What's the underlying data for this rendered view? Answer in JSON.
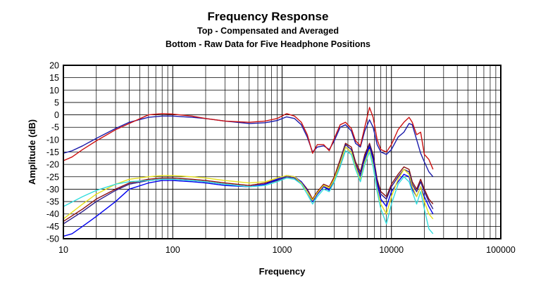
{
  "chart_data": {
    "type": "line",
    "title": "Frequency Response",
    "subtitle_lines": [
      "Top -  Compensated and Averaged",
      "Bottom - Raw Data for Five Headphone Positions"
    ],
    "xlabel": "Frequency",
    "ylabel": "Amplitude (dB)",
    "x_scale": "log",
    "xlim": [
      10,
      100000
    ],
    "ylim": [
      -50,
      20
    ],
    "x_ticks": [
      10,
      100,
      1000,
      10000,
      100000
    ],
    "x_tick_labels": [
      "10",
      "100",
      "1000",
      "10000",
      "100000"
    ],
    "y_ticks": [
      20,
      15,
      10,
      5,
      0,
      -5,
      -10,
      -15,
      -20,
      -25,
      -30,
      -35,
      -40,
      -45,
      -50
    ],
    "grid": true,
    "legend": "none",
    "series": [
      {
        "group": "compensated",
        "color": "#1a1aaa",
        "points": [
          [
            10,
            -15.5
          ],
          [
            12,
            -14.5
          ],
          [
            15,
            -12.5
          ],
          [
            20,
            -9.5
          ],
          [
            30,
            -5.5
          ],
          [
            40,
            -3
          ],
          [
            60,
            -1
          ],
          [
            80,
            -0.5
          ],
          [
            100,
            -0.5
          ],
          [
            150,
            -1
          ],
          [
            200,
            -1.5
          ],
          [
            300,
            -2.5
          ],
          [
            500,
            -3.5
          ],
          [
            700,
            -3.2
          ],
          [
            900,
            -2.3
          ],
          [
            1100,
            -0.8
          ],
          [
            1300,
            -1.5
          ],
          [
            1500,
            -4
          ],
          [
            1700,
            -9
          ],
          [
            1900,
            -15
          ],
          [
            2100,
            -13
          ],
          [
            2400,
            -12.5
          ],
          [
            2700,
            -14
          ],
          [
            3000,
            -10.5
          ],
          [
            3400,
            -5
          ],
          [
            3800,
            -4
          ],
          [
            4300,
            -6.5
          ],
          [
            4700,
            -11.5
          ],
          [
            5200,
            -13
          ],
          [
            5700,
            -6.5
          ],
          [
            6300,
            -2
          ],
          [
            6800,
            -5
          ],
          [
            7400,
            -12
          ],
          [
            8000,
            -15
          ],
          [
            9000,
            -16
          ],
          [
            10000,
            -14
          ],
          [
            11500,
            -9
          ],
          [
            13000,
            -7
          ],
          [
            14500,
            -3.5
          ],
          [
            15500,
            -4
          ],
          [
            17000,
            -10
          ],
          [
            18500,
            -15.5
          ],
          [
            20000,
            -19
          ],
          [
            22000,
            -23
          ],
          [
            24000,
            -25
          ]
        ]
      },
      {
        "group": "compensated",
        "color": "#cc1111",
        "points": [
          [
            10,
            -18.5
          ],
          [
            12,
            -17
          ],
          [
            15,
            -14
          ],
          [
            20,
            -10.5
          ],
          [
            30,
            -6
          ],
          [
            40,
            -3.5
          ],
          [
            60,
            0
          ],
          [
            80,
            0.5
          ],
          [
            100,
            0.3
          ],
          [
            150,
            -0.5
          ],
          [
            200,
            -1.5
          ],
          [
            300,
            -2.5
          ],
          [
            500,
            -3
          ],
          [
            700,
            -2.5
          ],
          [
            900,
            -1.5
          ],
          [
            1100,
            0.5
          ],
          [
            1300,
            -0.5
          ],
          [
            1500,
            -3
          ],
          [
            1700,
            -8
          ],
          [
            1900,
            -15.5
          ],
          [
            2100,
            -12
          ],
          [
            2400,
            -12
          ],
          [
            2700,
            -14.5
          ],
          [
            3000,
            -9.5
          ],
          [
            3400,
            -4
          ],
          [
            3800,
            -3
          ],
          [
            4300,
            -5.5
          ],
          [
            4700,
            -10.5
          ],
          [
            5200,
            -12.5
          ],
          [
            5700,
            -5
          ],
          [
            6300,
            3
          ],
          [
            6800,
            -1
          ],
          [
            7400,
            -10
          ],
          [
            8000,
            -14
          ],
          [
            9000,
            -15
          ],
          [
            10000,
            -12
          ],
          [
            11500,
            -6
          ],
          [
            13000,
            -3
          ],
          [
            14500,
            -1
          ],
          [
            15500,
            -3
          ],
          [
            17000,
            -8
          ],
          [
            18500,
            -7
          ],
          [
            20000,
            -16
          ],
          [
            22000,
            -18
          ],
          [
            24000,
            -22
          ]
        ]
      },
      {
        "group": "raw",
        "color": "#8b1010",
        "points": [
          [
            10,
            -43
          ],
          [
            15,
            -38
          ],
          [
            20,
            -34
          ],
          [
            30,
            -30
          ],
          [
            40,
            -27.5
          ],
          [
            60,
            -26
          ],
          [
            80,
            -25.5
          ],
          [
            100,
            -25.5
          ],
          [
            150,
            -26
          ],
          [
            200,
            -26.5
          ],
          [
            300,
            -27.5
          ],
          [
            500,
            -28.5
          ],
          [
            700,
            -27.5
          ],
          [
            900,
            -26
          ],
          [
            1100,
            -24.5
          ],
          [
            1300,
            -25
          ],
          [
            1500,
            -27
          ],
          [
            1700,
            -30
          ],
          [
            1900,
            -34
          ],
          [
            2100,
            -31
          ],
          [
            2400,
            -28
          ],
          [
            2700,
            -29
          ],
          [
            3000,
            -25
          ],
          [
            3400,
            -18
          ],
          [
            3800,
            -11.5
          ],
          [
            4300,
            -13
          ],
          [
            4700,
            -19
          ],
          [
            5200,
            -23
          ],
          [
            5700,
            -16
          ],
          [
            6300,
            -11.5
          ],
          [
            6800,
            -16
          ],
          [
            7400,
            -26
          ],
          [
            8000,
            -31
          ],
          [
            9000,
            -33
          ],
          [
            10000,
            -28
          ],
          [
            11500,
            -24
          ],
          [
            13000,
            -21
          ],
          [
            14500,
            -22
          ],
          [
            15500,
            -27
          ],
          [
            17000,
            -30
          ],
          [
            18500,
            -26
          ],
          [
            20000,
            -30
          ],
          [
            22000,
            -34
          ],
          [
            24000,
            -36
          ]
        ]
      },
      {
        "group": "raw",
        "color": "#2a1a8a",
        "points": [
          [
            10,
            -44
          ],
          [
            15,
            -39
          ],
          [
            20,
            -35
          ],
          [
            30,
            -30.5
          ],
          [
            40,
            -28
          ],
          [
            60,
            -26.5
          ],
          [
            80,
            -26
          ],
          [
            100,
            -26
          ],
          [
            150,
            -26.5
          ],
          [
            200,
            -27
          ],
          [
            300,
            -28
          ],
          [
            500,
            -29
          ],
          [
            700,
            -28
          ],
          [
            900,
            -26.5
          ],
          [
            1100,
            -25
          ],
          [
            1300,
            -25.5
          ],
          [
            1500,
            -27.5
          ],
          [
            1700,
            -31
          ],
          [
            1900,
            -35
          ],
          [
            2100,
            -32
          ],
          [
            2400,
            -29
          ],
          [
            2700,
            -30
          ],
          [
            3000,
            -26
          ],
          [
            3400,
            -19
          ],
          [
            3800,
            -12
          ],
          [
            4300,
            -14
          ],
          [
            4700,
            -20
          ],
          [
            5200,
            -24
          ],
          [
            5700,
            -17
          ],
          [
            6300,
            -12
          ],
          [
            6800,
            -17
          ],
          [
            7400,
            -27
          ],
          [
            8000,
            -32
          ],
          [
            9000,
            -34
          ],
          [
            10000,
            -29
          ],
          [
            11500,
            -25
          ],
          [
            13000,
            -22
          ],
          [
            14500,
            -23
          ],
          [
            15500,
            -28
          ],
          [
            17000,
            -31
          ],
          [
            18500,
            -27
          ],
          [
            20000,
            -31
          ],
          [
            22000,
            -35
          ],
          [
            24000,
            -38
          ]
        ]
      },
      {
        "group": "raw",
        "color": "#0000ee",
        "points": [
          [
            10,
            -49
          ],
          [
            12,
            -48
          ],
          [
            15,
            -45
          ],
          [
            20,
            -41
          ],
          [
            30,
            -35
          ],
          [
            40,
            -30
          ],
          [
            60,
            -27.5
          ],
          [
            80,
            -26.5
          ],
          [
            100,
            -26.5
          ],
          [
            150,
            -27
          ],
          [
            200,
            -27.5
          ],
          [
            300,
            -28.5
          ],
          [
            500,
            -29
          ],
          [
            700,
            -28
          ],
          [
            900,
            -26
          ],
          [
            1100,
            -24.5
          ],
          [
            1300,
            -25
          ],
          [
            1500,
            -27
          ],
          [
            1700,
            -30.5
          ],
          [
            1900,
            -35
          ],
          [
            2100,
            -32
          ],
          [
            2400,
            -29
          ],
          [
            2700,
            -30.5
          ],
          [
            3000,
            -27
          ],
          [
            3400,
            -20
          ],
          [
            3800,
            -13
          ],
          [
            4300,
            -15
          ],
          [
            4700,
            -21
          ],
          [
            5200,
            -25
          ],
          [
            5700,
            -18
          ],
          [
            6300,
            -13
          ],
          [
            6800,
            -18
          ],
          [
            7400,
            -28
          ],
          [
            8000,
            -34
          ],
          [
            9000,
            -37
          ],
          [
            10000,
            -31
          ],
          [
            11500,
            -27
          ],
          [
            13000,
            -24
          ],
          [
            14500,
            -25
          ],
          [
            15500,
            -30
          ],
          [
            17000,
            -33
          ],
          [
            18500,
            -29
          ],
          [
            20000,
            -33
          ],
          [
            22000,
            -37
          ],
          [
            24000,
            -40
          ]
        ]
      },
      {
        "group": "raw",
        "color": "#e6e01a",
        "points": [
          [
            10,
            -42
          ],
          [
            15,
            -36
          ],
          [
            20,
            -32
          ],
          [
            30,
            -28
          ],
          [
            40,
            -26
          ],
          [
            60,
            -25
          ],
          [
            80,
            -24.5
          ],
          [
            100,
            -24.5
          ],
          [
            150,
            -25
          ],
          [
            200,
            -25.5
          ],
          [
            300,
            -26.5
          ],
          [
            500,
            -27.5
          ],
          [
            700,
            -27
          ],
          [
            900,
            -25.5
          ],
          [
            1100,
            -24.5
          ],
          [
            1300,
            -25
          ],
          [
            1500,
            -27.5
          ],
          [
            1700,
            -31
          ],
          [
            1900,
            -34.5
          ],
          [
            2100,
            -31.5
          ],
          [
            2400,
            -28.5
          ],
          [
            2700,
            -29.5
          ],
          [
            3000,
            -26
          ],
          [
            3400,
            -19.5
          ],
          [
            3800,
            -13
          ],
          [
            4300,
            -15
          ],
          [
            4700,
            -21
          ],
          [
            5200,
            -26
          ],
          [
            5700,
            -19
          ],
          [
            6300,
            -14
          ],
          [
            6800,
            -20
          ],
          [
            7400,
            -30
          ],
          [
            8000,
            -36
          ],
          [
            9000,
            -40
          ],
          [
            10000,
            -33
          ],
          [
            11500,
            -26
          ],
          [
            13000,
            -22
          ],
          [
            14500,
            -24
          ],
          [
            15500,
            -29
          ],
          [
            17000,
            -33
          ],
          [
            18500,
            -29
          ],
          [
            20000,
            -35
          ],
          [
            22000,
            -40
          ],
          [
            24000,
            -42
          ]
        ]
      },
      {
        "group": "raw",
        "color": "#33dddd",
        "points": [
          [
            10,
            -37
          ],
          [
            15,
            -33
          ],
          [
            20,
            -30.5
          ],
          [
            30,
            -28
          ],
          [
            40,
            -27
          ],
          [
            60,
            -26.5
          ],
          [
            80,
            -26
          ],
          [
            100,
            -26
          ],
          [
            150,
            -26.5
          ],
          [
            200,
            -27
          ],
          [
            300,
            -28
          ],
          [
            500,
            -29
          ],
          [
            700,
            -28.5
          ],
          [
            900,
            -27
          ],
          [
            1100,
            -25.5
          ],
          [
            1300,
            -26
          ],
          [
            1500,
            -28
          ],
          [
            1700,
            -32
          ],
          [
            1900,
            -36
          ],
          [
            2100,
            -33
          ],
          [
            2400,
            -30
          ],
          [
            2700,
            -31
          ],
          [
            3000,
            -27
          ],
          [
            3400,
            -21
          ],
          [
            3800,
            -14.5
          ],
          [
            4300,
            -16
          ],
          [
            4700,
            -22
          ],
          [
            5200,
            -27
          ],
          [
            5700,
            -20
          ],
          [
            6300,
            -15
          ],
          [
            6800,
            -21
          ],
          [
            7400,
            -31
          ],
          [
            8000,
            -38
          ],
          [
            9000,
            -44
          ],
          [
            10000,
            -36
          ],
          [
            11500,
            -28
          ],
          [
            13000,
            -25
          ],
          [
            14500,
            -27
          ],
          [
            15500,
            -31
          ],
          [
            17000,
            -36
          ],
          [
            18500,
            -31
          ],
          [
            20000,
            -38
          ],
          [
            22000,
            -46
          ],
          [
            24000,
            -48
          ]
        ]
      }
    ]
  }
}
